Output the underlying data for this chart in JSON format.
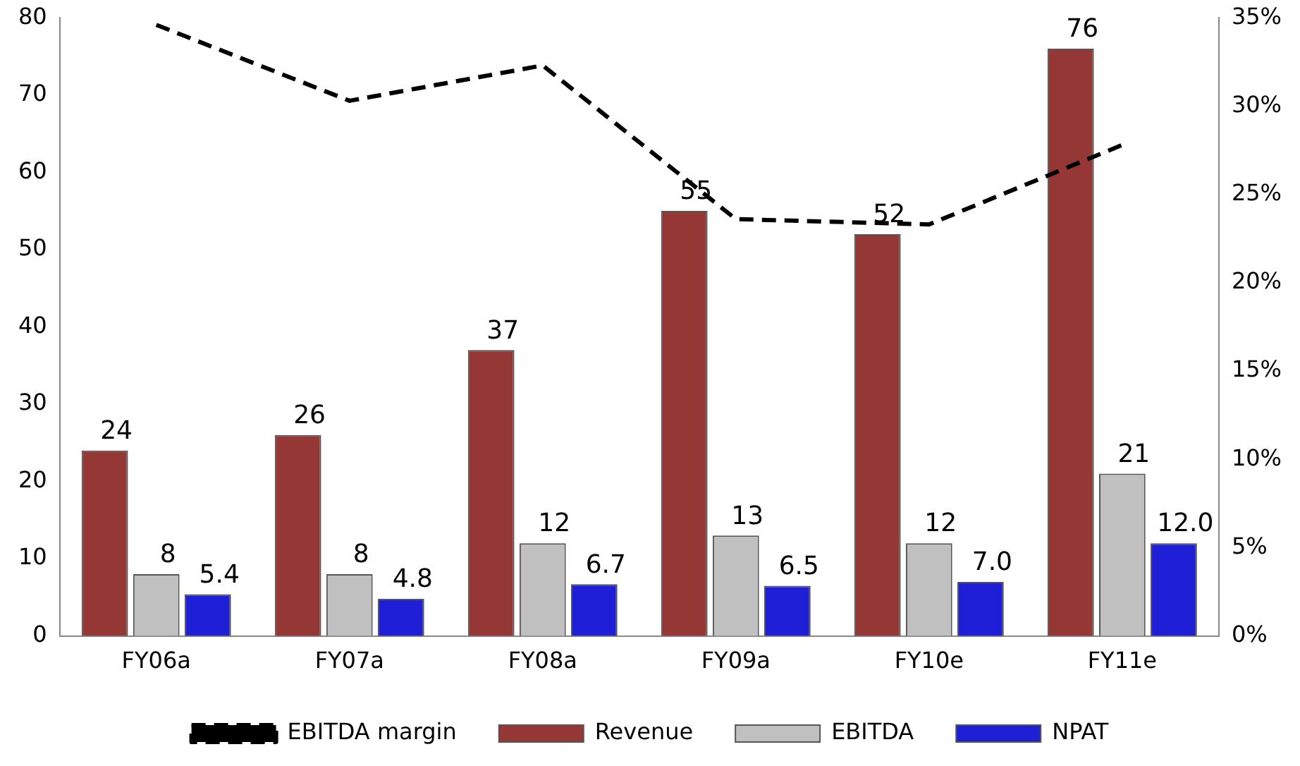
{
  "chart_data": {
    "type": "bar",
    "categories": [
      "FY06a",
      "FY07a",
      "FY08a",
      "FY09a",
      "FY10e",
      "FY11e"
    ],
    "series": [
      {
        "name": "Revenue",
        "color": "#953735",
        "values": [
          24,
          26,
          37,
          55,
          52,
          76
        ],
        "value_labels": [
          "24",
          "26",
          "37",
          "55",
          "52",
          "76"
        ]
      },
      {
        "name": "EBITDA",
        "color": "#c0c0c0",
        "values": [
          8,
          8,
          12,
          13,
          12,
          21
        ],
        "value_labels": [
          "8",
          "8",
          "12",
          "13",
          "12",
          "21"
        ]
      },
      {
        "name": "NPAT",
        "color": "#1f1fd8",
        "values": [
          5.4,
          4.8,
          6.7,
          6.5,
          7.0,
          12.0
        ],
        "value_labels": [
          "5.4",
          "4.8",
          "6.7",
          "6.5",
          "7.0",
          "12.0"
        ]
      },
      {
        "name": "EBITDA margin",
        "type": "line",
        "axis": "y2",
        "color": "#000000",
        "line_style": "dashed",
        "marker": "none",
        "values": [
          34.6,
          30.3,
          32.3,
          23.6,
          23.3,
          27.8
        ]
      }
    ],
    "ylim": [
      0,
      80
    ],
    "yticks": [
      0,
      10,
      20,
      30,
      40,
      50,
      60,
      70,
      80
    ],
    "y2lim": [
      0,
      35
    ],
    "y2ticks": [
      {
        "value": 0,
        "label": "0%"
      },
      {
        "value": 5,
        "label": "5%"
      },
      {
        "value": 10,
        "label": "10%"
      },
      {
        "value": 15,
        "label": "15%"
      },
      {
        "value": 20,
        "label": "20%"
      },
      {
        "value": 25,
        "label": "25%"
      },
      {
        "value": 30,
        "label": "30%"
      },
      {
        "value": 35,
        "label": "35%"
      }
    ],
    "grid": false,
    "legend": "bottom"
  }
}
